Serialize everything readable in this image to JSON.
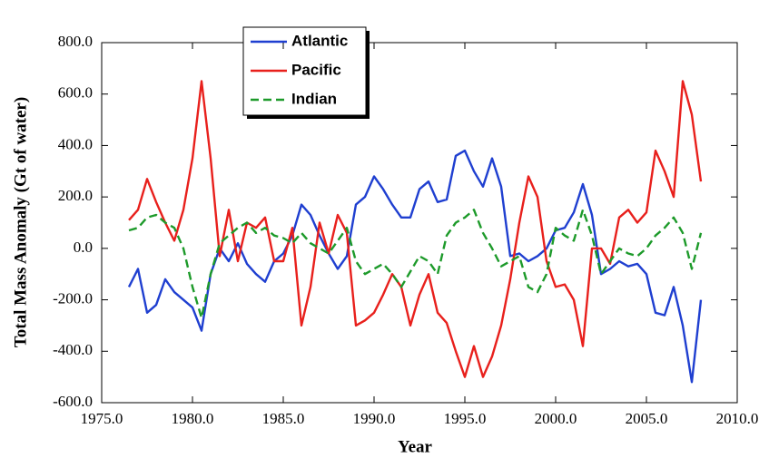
{
  "chart_data": {
    "type": "line",
    "x_label": "Year",
    "y_label": "Total Mass Anomaly (Gt of water)",
    "x": [
      1976.5,
      1977,
      1977.5,
      1978,
      1978.5,
      1979,
      1979.5,
      1980,
      1980.5,
      1981,
      1981.5,
      1982,
      1982.5,
      1983,
      1983.5,
      1984,
      1984.5,
      1985,
      1985.5,
      1986,
      1986.5,
      1987,
      1987.5,
      1988,
      1988.5,
      1989,
      1989.5,
      1990,
      1990.5,
      1991,
      1991.5,
      1992,
      1992.5,
      1993,
      1993.5,
      1994,
      1994.5,
      1995,
      1995.5,
      1996,
      1996.5,
      1997,
      1997.5,
      1998,
      1998.5,
      1999,
      1999.5,
      2000,
      2000.5,
      2001,
      2001.5,
      2002,
      2002.5,
      2003,
      2003.5,
      2004,
      2004.5,
      2005,
      2005.5,
      2006,
      2006.5,
      2007,
      2007.5,
      2008
    ],
    "series": [
      {
        "name": "Atlantic",
        "color": "#1f3fd0",
        "dashed": false,
        "values": [
          -150,
          -80,
          -250,
          -220,
          -120,
          -170,
          -200,
          -230,
          -320,
          -100,
          0,
          -50,
          20,
          -60,
          -100,
          -130,
          -50,
          -20,
          50,
          170,
          130,
          50,
          -20,
          -80,
          -30,
          170,
          200,
          280,
          230,
          170,
          120,
          120,
          230,
          260,
          180,
          190,
          360,
          380,
          300,
          240,
          350,
          240,
          -30,
          -20,
          -50,
          -30,
          0,
          70,
          80,
          140,
          250,
          130,
          -100,
          -80,
          -50,
          -70,
          -60,
          -100,
          -250,
          -260,
          -150,
          -300,
          -520,
          -200
        ]
      },
      {
        "name": "Pacific",
        "color": "#e8201c",
        "dashed": false,
        "values": [
          110,
          150,
          270,
          180,
          100,
          30,
          150,
          350,
          650,
          350,
          -30,
          150,
          -50,
          100,
          80,
          120,
          -50,
          -50,
          80,
          -300,
          -150,
          100,
          -20,
          130,
          60,
          -300,
          -280,
          -250,
          -180,
          -100,
          -150,
          -300,
          -180,
          -100,
          -250,
          -290,
          -400,
          -500,
          -380,
          -500,
          -420,
          -300,
          -120,
          100,
          280,
          200,
          -50,
          -150,
          -140,
          -200,
          -380,
          0,
          0,
          -60,
          120,
          150,
          100,
          140,
          380,
          300,
          200,
          650,
          520,
          260
        ]
      },
      {
        "name": "Indian",
        "color": "#1d9a2a",
        "dashed": true,
        "values": [
          70,
          80,
          120,
          130,
          100,
          80,
          0,
          -150,
          -270,
          -100,
          20,
          50,
          80,
          100,
          60,
          80,
          50,
          40,
          20,
          60,
          20,
          0,
          -20,
          30,
          80,
          -50,
          -100,
          -80,
          -60,
          -100,
          -150,
          -90,
          -30,
          -50,
          -100,
          50,
          100,
          120,
          150,
          60,
          0,
          -70,
          -50,
          -30,
          -150,
          -170,
          -100,
          80,
          50,
          30,
          150,
          50,
          -100,
          -50,
          0,
          -20,
          -30,
          0,
          50,
          80,
          120,
          60,
          -80,
          60
        ]
      }
    ],
    "xlim": [
      1975,
      2010
    ],
    "xticks": [
      {
        "value": 1975,
        "label": "1975.0"
      },
      {
        "value": 1980,
        "label": "1980.0"
      },
      {
        "value": 1985,
        "label": "1985.0"
      },
      {
        "value": 1990,
        "label": "1990.0"
      },
      {
        "value": 1995,
        "label": "1995.0"
      },
      {
        "value": 2000,
        "label": "2000.0"
      },
      {
        "value": 2005,
        "label": "2005.0"
      },
      {
        "value": 2010,
        "label": "2010.0"
      }
    ],
    "ylim": [
      -600,
      800
    ],
    "yticks": [
      {
        "value": -600,
        "label": "-600.0"
      },
      {
        "value": -400,
        "label": "-400.0"
      },
      {
        "value": -200,
        "label": "-200.0"
      },
      {
        "value": 0,
        "label": "0.0"
      },
      {
        "value": 200,
        "label": "200.0"
      },
      {
        "value": 400,
        "label": "400.0"
      },
      {
        "value": 600,
        "label": "600.0"
      },
      {
        "value": 800,
        "label": "800.0"
      }
    ],
    "legend": "upper left"
  }
}
